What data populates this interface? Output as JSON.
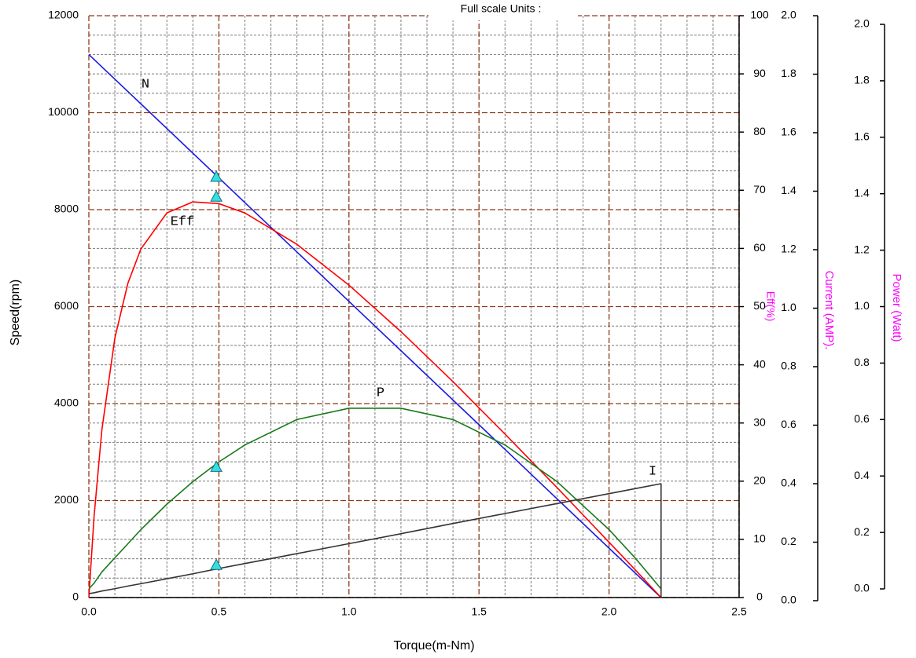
{
  "chart_data": {
    "type": "line",
    "title": "Full scale  Units :",
    "x_label": "Torque(m-Nm)",
    "y_label": "Speed(rpm)",
    "y2_label": "Eff(%)",
    "y3_label": "Current (AMP).",
    "y4_label": "Power (Watt)",
    "x": [
      0,
      0.02,
      0.05,
      0.1,
      0.15,
      0.2,
      0.3,
      0.4,
      0.5,
      0.6,
      0.8,
      1.0,
      1.2,
      1.4,
      1.6,
      1.8,
      2.0,
      2.1,
      2.2
    ],
    "series": [
      {
        "name": "N",
        "color": "#1a1ae0",
        "axis": "y",
        "values": [
          11200,
          11098,
          10945,
          10691,
          10436,
          10182,
          9673,
          9164,
          8655,
          8145,
          7127,
          6109,
          5091,
          4073,
          3055,
          2036,
          1018,
          509,
          0
        ]
      },
      {
        "name": "Eff",
        "color": "#ff0000",
        "axis": "y2",
        "values": [
          0,
          13.9,
          28.8,
          44.6,
          54.0,
          59.9,
          66.1,
          68.0,
          67.7,
          66.1,
          60.7,
          53.7,
          45.7,
          37.1,
          28.1,
          18.9,
          9.5,
          4.8,
          0
        ]
      },
      {
        "name": "P",
        "color": "#1a7a1a",
        "axis": "y4",
        "values": [
          0,
          0.02,
          0.06,
          0.11,
          0.16,
          0.21,
          0.3,
          0.38,
          0.45,
          0.51,
          0.6,
          0.64,
          0.64,
          0.6,
          0.51,
          0.38,
          0.21,
          0.11,
          0
        ]
      },
      {
        "name": "I",
        "color": "#333333",
        "axis": "y3",
        "values": [
          0.024,
          0.027,
          0.033,
          0.041,
          0.05,
          0.058,
          0.075,
          0.092,
          0.11,
          0.127,
          0.161,
          0.195,
          0.229,
          0.264,
          0.298,
          0.332,
          0.366,
          0.383,
          0.4
        ]
      }
    ],
    "operating_point": {
      "x": 0.49,
      "color": "#33e0e0",
      "values": [
        8664,
        68.8,
        0.43,
        0.12
      ]
    },
    "xlim": [
      0,
      2.5
    ],
    "xticks": [
      {
        "value": 0,
        "label": "0.0"
      },
      0.5,
      {
        "value": 1,
        "label": "1.0"
      },
      1.5,
      {
        "value": 2,
        "label": "2.0"
      },
      2.5
    ],
    "x_minor_ticks": [
      0.1,
      0.2,
      0.3,
      0.4,
      0.6,
      0.7,
      0.8,
      0.9,
      1.1,
      1.2,
      1.3,
      1.4,
      1.6,
      1.7,
      1.8,
      1.9,
      2.1,
      2.2,
      2.3,
      2.4
    ],
    "ylim": [
      0,
      12000
    ],
    "yticks": [
      0,
      2000,
      4000,
      6000,
      8000,
      10000,
      12000
    ],
    "y_minor_ticks": [
      400,
      800,
      1200,
      1600,
      2400,
      2800,
      3200,
      3600,
      4400,
      4800,
      5200,
      5600,
      6400,
      6800,
      7200,
      7600,
      8400,
      8800,
      9200,
      9600,
      10400,
      10800,
      11200,
      11600
    ],
    "y2lim": [
      0,
      100
    ],
    "y2ticks": [
      0,
      10,
      20,
      30,
      40,
      50,
      60,
      70,
      80,
      90,
      100
    ],
    "y3lim": [
      0,
      2
    ],
    "y3ticks": [
      {
        "value": 0,
        "label": "0.0"
      },
      0.2,
      0.4,
      0.6,
      0.8,
      {
        "value": 1,
        "label": "1.0"
      },
      1.2,
      1.4,
      1.6,
      1.8,
      {
        "value": 2,
        "label": "2.0"
      }
    ],
    "y4lim": [
      0,
      2
    ],
    "y4ticks": [
      {
        "value": 0,
        "label": "0.0"
      },
      0.2,
      0.4,
      0.6,
      0.8,
      {
        "value": 1,
        "label": "1.0"
      },
      1.2,
      1.4,
      1.6,
      1.8,
      {
        "value": 2,
        "label": "2.0"
      }
    ],
    "grid": true
  }
}
